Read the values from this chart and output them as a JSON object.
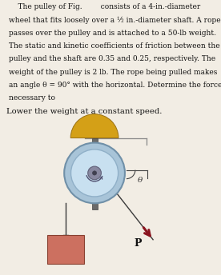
{
  "bg_color": "#f2ede4",
  "text_lines": [
    "    The pulley of Fig.        consists of a 4-in.-diameter",
    "wheel that fits loosely over a ½ in.-diameter shaft. A rope",
    "passes over the pulley and is attached to a 50-lb weight.",
    "The static and kinetic coefficients of friction between the",
    "pulley and the shaft are 0.35 and 0.25, respectively. The",
    "weight of the pulley is 2 lb. The rope being pulled makes",
    "an angle θ = 90° with the horizontal. Determine the force",
    "necessary to"
  ],
  "subtext": "Lower the weight at a constant speed.",
  "text_fontsize": 6.5,
  "sub_fontsize": 7.2,
  "mount_color": "#d4a017",
  "mount_edge": "#9a7010",
  "shaft_color": "#6a6a6a",
  "shaft_edge": "#444444",
  "pulley_outer_color": "#a8c4d8",
  "pulley_outer_edge": "#7090a8",
  "pulley_mid_color": "#c8e0f0",
  "pulley_mid_edge": "#90b0c8",
  "hub_color": "#8888a0",
  "hub_edge": "#606078",
  "dot_color": "#404050",
  "rope_color": "#3a3a3a",
  "weight_color": "#cc7060",
  "weight_edge": "#884030",
  "arrow_color": "#8b1520",
  "label_P": "P",
  "label_theta": "θ"
}
